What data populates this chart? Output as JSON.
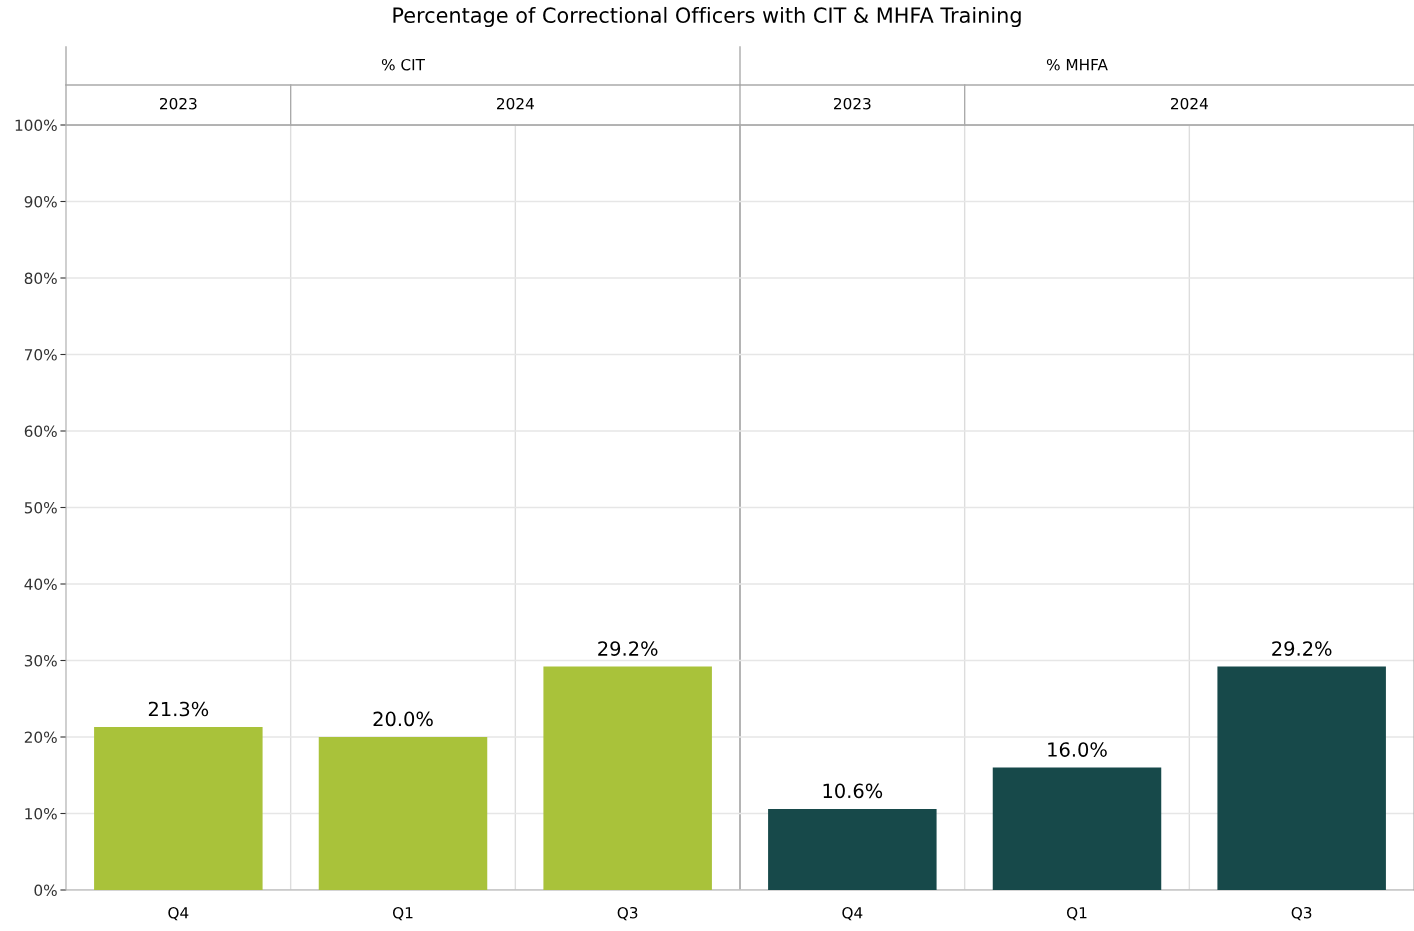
{
  "chart_data": {
    "type": "bar",
    "title": "Percentage of Correctional Officers with CIT & MHFA Training",
    "categories": [
      "Q4",
      "Q1",
      "Q3",
      "Q4",
      "Q1",
      "Q3"
    ],
    "values": [
      21.3,
      20.0,
      29.2,
      10.6,
      16.0,
      29.2
    ],
    "colors": [
      "#a9c23a",
      "#a9c23a",
      "#a9c23a",
      "#17494a",
      "#17494a",
      "#17494a"
    ],
    "value_labels": [
      "21.3%",
      "20.0%",
      "29.2%",
      "10.6%",
      "16.0%",
      "29.2%"
    ],
    "annotations": [
      "% CIT",
      "% MHFA",
      "2023",
      "2024",
      "2023",
      "2024"
    ],
    "ylim": [
      0,
      100
    ],
    "yticks": [
      {
        "value": 0,
        "label": "0%"
      },
      {
        "value": 10,
        "label": "10%"
      },
      {
        "value": 20,
        "label": "20%"
      },
      {
        "value": 30,
        "label": "30%"
      },
      {
        "value": 40,
        "label": "40%"
      },
      {
        "value": 50,
        "label": "50%"
      },
      {
        "value": 60,
        "label": "60%"
      },
      {
        "value": 70,
        "label": "70%"
      },
      {
        "value": 80,
        "label": "80%"
      },
      {
        "value": 90,
        "label": "90%"
      },
      {
        "value": 100,
        "label": "100%"
      }
    ],
    "grid": "y"
  }
}
